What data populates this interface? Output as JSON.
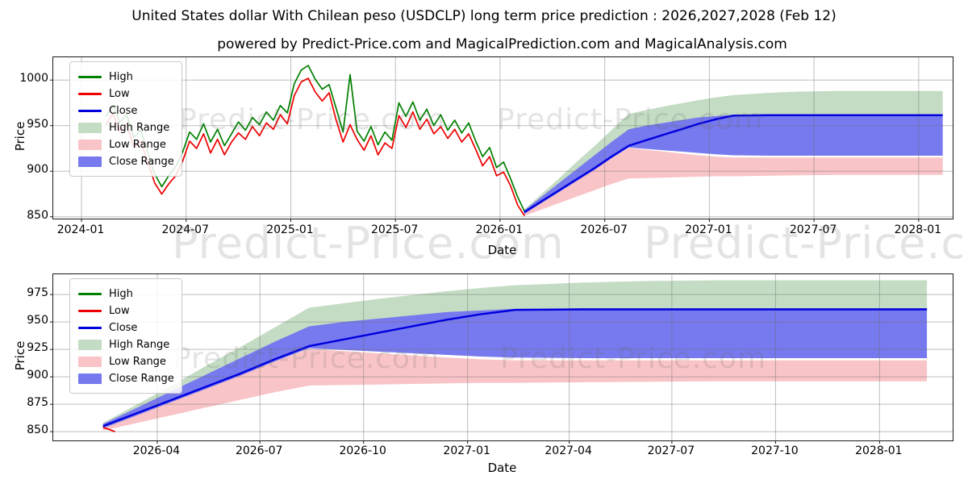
{
  "page": {
    "title": "United States dollar With Chilean peso (USDCLP) long term price prediction : 2026,2027,2028 (Feb 12)",
    "subtitle": "powered by Predict-Price.com and MagicalPrediction.com and MagicalAnalysis.com"
  },
  "watermark": {
    "text": "Predict-Price.com"
  },
  "legend": {
    "items": [
      "High",
      "Low",
      "Close",
      "High Range",
      "Low Range",
      "Close Range"
    ]
  },
  "colors": {
    "high": "#008000",
    "low": "#ee0000",
    "close": "#0000dd",
    "high_range": "#c4dcc4",
    "low_range": "#f9c4c7",
    "close_range": "#7779ee",
    "grid": "#9a9a9a",
    "spine": "#1a1a1a"
  },
  "chart_data": [
    {
      "type": "line",
      "name": "usdclp-history-and-forecast",
      "xlabel": "Date",
      "ylabel": "Price",
      "x_tick_labels": [
        "2024-01",
        "2024-07",
        "2025-01",
        "2025-07",
        "2026-01",
        "2026-07",
        "2027-01",
        "2027-07",
        "2028-01"
      ],
      "x_tick_months": [
        0,
        6,
        12,
        18,
        24,
        30,
        36,
        42,
        48
      ],
      "y_tick_labels": [
        "850",
        "900",
        "950",
        "1000"
      ],
      "y_ticks": [
        850,
        900,
        950,
        1000
      ],
      "xlim_months_since_2024_01": [
        -1.62,
        49.95
      ],
      "ylim": [
        848,
        1025
      ],
      "grid": true,
      "legend_position": "upper-left",
      "series": {
        "history": {
          "note": "High/Low/Close daily history 2024-02-12 to 2026-02-12, sampled; t in months since 2024-01",
          "t_start": 1.4,
          "t_step": 0.4,
          "high": [
            960,
            972,
            954,
            962,
            937,
            945,
            921,
            897,
            883,
            895,
            905,
            921,
            943,
            935,
            952,
            932,
            946,
            928,
            941,
            954,
            945,
            959,
            951,
            965,
            956,
            972,
            964,
            996,
            1011,
            1016,
            1001,
            990,
            995,
            969,
            943,
            1006,
            944,
            933,
            949,
            929,
            943,
            934,
            975,
            960,
            976,
            956,
            968,
            950,
            962,
            945,
            956,
            942,
            953,
            933,
            916,
            926,
            904,
            910,
            892,
            872,
            856
          ],
          "low": [
            951,
            963,
            944,
            952,
            926,
            933,
            910,
            887,
            875,
            886,
            895,
            911,
            933,
            925,
            941,
            920,
            935,
            918,
            932,
            942,
            935,
            949,
            939,
            953,
            946,
            962,
            952,
            983,
            998,
            1002,
            987,
            977,
            986,
            956,
            932,
            951,
            935,
            923,
            939,
            918,
            931,
            925,
            961,
            948,
            965,
            946,
            957,
            941,
            949,
            936,
            946,
            932,
            941,
            924,
            906,
            916,
            895,
            899,
            884,
            863,
            851
          ],
          "close": [
            955,
            968,
            948,
            958,
            930,
            940,
            915,
            893,
            880,
            890,
            901,
            915,
            938,
            931,
            945,
            927,
            940,
            924,
            936,
            947,
            941,
            953,
            946,
            958,
            952,
            966,
            959,
            988,
            1004,
            1010,
            992,
            984,
            990,
            962,
            937,
            972,
            939,
            929,
            943,
            925,
            936,
            929,
            967,
            955,
            969,
            952,
            962,
            945,
            955,
            941,
            950,
            938,
            946,
            928,
            912,
            920,
            900,
            905,
            888,
            868,
            853
          ]
        },
        "forecast": {
          "note": "prediction 2026-02-12 to 2028-02-12; t in months since 2026-02-12",
          "t": [
            0,
            1,
            2,
            3,
            4,
            5,
            6,
            7,
            8,
            9,
            10,
            11,
            12,
            14,
            16,
            18,
            20,
            22,
            24
          ],
          "close": [
            855,
            867,
            879,
            891,
            903,
            916,
            928,
            934,
            940,
            946,
            952,
            957,
            961,
            961.5,
            961.5,
            961.5,
            961.5,
            961.5,
            961.5
          ],
          "close_upper": [
            857,
            872,
            887,
            902,
            917,
            932,
            946,
            950,
            953,
            956,
            959,
            960.5,
            962,
            962.5,
            962.5,
            962.5,
            962.5,
            962.5,
            962.5
          ],
          "close_lower": [
            853,
            865,
            877,
            889,
            901,
            914,
            926,
            924.5,
            923,
            921.5,
            920,
            918.5,
            917.5,
            917,
            917,
            917,
            917,
            917,
            917
          ],
          "high_upper": [
            858,
            875,
            892,
            910,
            927,
            945,
            963,
            967,
            971,
            974.5,
            978,
            981,
            983.5,
            986,
            987.5,
            988,
            988,
            988,
            988
          ],
          "high_lower": [
            856,
            871,
            886,
            901,
            916,
            931,
            945,
            949,
            952.5,
            955.5,
            958,
            959.5,
            961,
            961.5,
            961.5,
            961.5,
            961.5,
            961.5,
            961.5
          ],
          "low_upper": [
            854,
            866,
            878,
            890,
            902,
            914,
            925.5,
            923.5,
            921.5,
            919.5,
            917.5,
            916,
            915,
            915,
            915,
            915,
            915,
            915,
            915
          ],
          "low_lower": [
            851,
            858,
            865,
            872,
            879,
            886,
            892,
            892.5,
            893,
            893.5,
            894,
            894.5,
            894.5,
            895,
            895.5,
            896,
            896,
            896,
            896
          ]
        },
        "forecast_t_offset_in_top_axis_months": 25.38
      }
    },
    {
      "type": "line",
      "name": "usdclp-forecast-detail",
      "xlabel": "Date",
      "ylabel": "Price",
      "x_tick_labels": [
        "2026-04",
        "2026-07",
        "2026-10",
        "2027-01",
        "2027-04",
        "2027-07",
        "2027-10",
        "2028-01"
      ],
      "x_tick_months": [
        1.58,
        4.57,
        7.59,
        10.62,
        13.58,
        16.57,
        19.59,
        22.62
      ],
      "y_tick_labels": [
        "850",
        "875",
        "900",
        "925",
        "950",
        "975"
      ],
      "y_ticks": [
        850,
        875,
        900,
        925,
        950,
        975
      ],
      "xlim_months_since_2026_02_12": [
        -1.45,
        24.75
      ],
      "ylim": [
        842,
        993.5
      ],
      "grid": true,
      "legend_position": "upper-left",
      "forecast_same_as_chart_0": true
    }
  ]
}
